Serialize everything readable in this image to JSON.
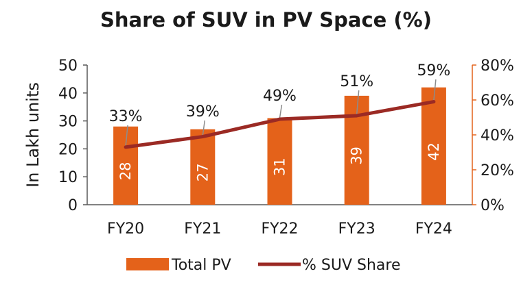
{
  "chart_data": {
    "type": "bar",
    "title": "Share of SUV in PV Space (%)",
    "categories": [
      "FY20",
      "FY21",
      "FY22",
      "FY23",
      "FY24"
    ],
    "series": [
      {
        "name": "Total PV",
        "kind": "bar",
        "axis": "left",
        "values": [
          28,
          27,
          31,
          39,
          42
        ],
        "labels": [
          "28",
          "27",
          "31",
          "39",
          "42"
        ]
      },
      {
        "name": "% SUV Share",
        "kind": "line",
        "axis": "right",
        "values": [
          33,
          39,
          49,
          51,
          59
        ],
        "labels": [
          "33%",
          "39%",
          "49%",
          "51%",
          "59%"
        ]
      }
    ],
    "ylabel": "In Lakh units",
    "ylim": [
      0,
      50
    ],
    "yticks": [
      "0",
      "10",
      "20",
      "30",
      "40",
      "50"
    ],
    "y2lim": [
      0,
      80
    ],
    "y2ticks": [
      "0%",
      "20%",
      "40%",
      "60%",
      "80%"
    ],
    "legend": {
      "position": "bottom",
      "items": [
        "Total PV",
        "% SUV Share"
      ]
    }
  },
  "colors": {
    "bar": "#E4621A",
    "line": "#9B2A24",
    "axis": "#595959",
    "right_axis": "#E4621A",
    "leader": "#8c8c8c"
  }
}
